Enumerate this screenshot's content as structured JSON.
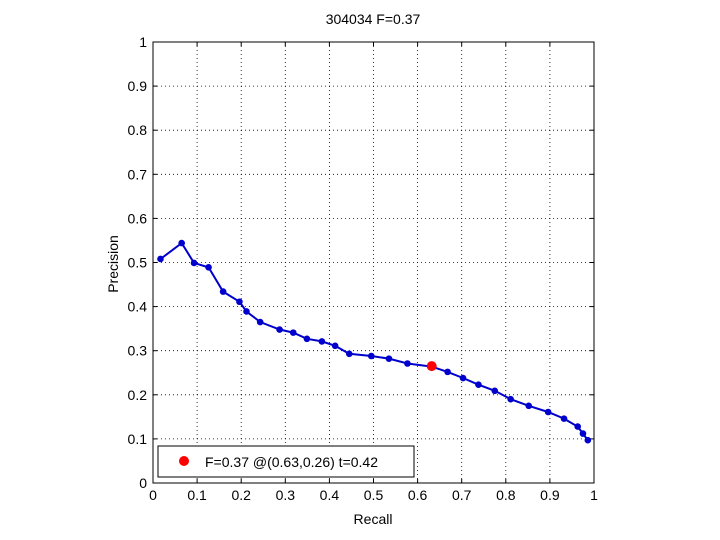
{
  "chart_data": {
    "type": "line",
    "title": "304034 F=0.37",
    "xlabel": "Recall",
    "ylabel": "Precision",
    "xlim": [
      0,
      1
    ],
    "ylim": [
      0,
      1
    ],
    "xticks": [
      "0",
      "0.1",
      "0.2",
      "0.3",
      "0.4",
      "0.5",
      "0.6",
      "0.7",
      "0.8",
      "0.9",
      "1"
    ],
    "yticks": [
      "0",
      "0.1",
      "0.2",
      "0.3",
      "0.4",
      "0.5",
      "0.6",
      "0.7",
      "0.8",
      "0.9",
      "1"
    ],
    "grid": true,
    "legend_position": "bottom-left",
    "series": [
      {
        "color": "#0000cc",
        "points": [
          {
            "x": 0.017,
            "y": 0.508
          },
          {
            "x": 0.065,
            "y": 0.544
          },
          {
            "x": 0.093,
            "y": 0.499
          },
          {
            "x": 0.126,
            "y": 0.489
          },
          {
            "x": 0.159,
            "y": 0.434
          },
          {
            "x": 0.196,
            "y": 0.411
          },
          {
            "x": 0.212,
            "y": 0.389
          },
          {
            "x": 0.243,
            "y": 0.365
          },
          {
            "x": 0.287,
            "y": 0.348
          },
          {
            "x": 0.318,
            "y": 0.341
          },
          {
            "x": 0.349,
            "y": 0.327
          },
          {
            "x": 0.383,
            "y": 0.321
          },
          {
            "x": 0.413,
            "y": 0.311
          },
          {
            "x": 0.445,
            "y": 0.293
          },
          {
            "x": 0.495,
            "y": 0.288
          },
          {
            "x": 0.535,
            "y": 0.282
          },
          {
            "x": 0.577,
            "y": 0.271
          },
          {
            "x": 0.632,
            "y": 0.264
          },
          {
            "x": 0.668,
            "y": 0.252
          },
          {
            "x": 0.703,
            "y": 0.238
          },
          {
            "x": 0.738,
            "y": 0.223
          },
          {
            "x": 0.775,
            "y": 0.209
          },
          {
            "x": 0.811,
            "y": 0.19
          },
          {
            "x": 0.852,
            "y": 0.175
          },
          {
            "x": 0.896,
            "y": 0.161
          },
          {
            "x": 0.932,
            "y": 0.146
          },
          {
            "x": 0.963,
            "y": 0.128
          },
          {
            "x": 0.975,
            "y": 0.112
          },
          {
            "x": 0.986,
            "y": 0.097
          }
        ]
      }
    ],
    "highlight": {
      "x": 0.632,
      "y": 0.265,
      "color": "#ff0000"
    },
    "legend": {
      "label": "F=0.37 @(0.63,0.26) t=0.42"
    }
  }
}
